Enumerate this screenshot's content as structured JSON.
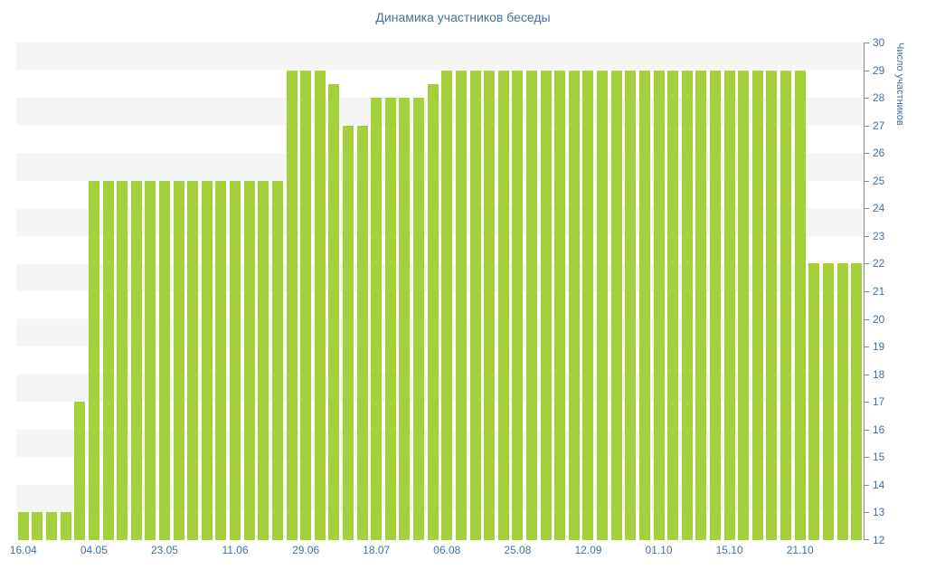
{
  "title": "Динамика участников беседы",
  "colors": {
    "background": "#ffffff",
    "stripe": "#f5f5f5",
    "bar": "#a4d139",
    "text": "#44719e",
    "axis": "#8a8a8a"
  },
  "chart_data": {
    "type": "bar",
    "title": "Динамика участников беседы",
    "xlabel": "",
    "ylabel": "Число участников",
    "ylim": [
      12,
      30
    ],
    "y_tick_step": 1,
    "y_axis_side": "right",
    "grid": "horizontal-stripes",
    "legend": "none",
    "bar_color": "#a4d139",
    "x_tick_every": 5,
    "categories_shown": [
      "16.04",
      "04.05",
      "23.05",
      "11.06",
      "29.06",
      "18.07",
      "06.08",
      "25.08",
      "12.09",
      "01.10",
      "15.10",
      "21.10"
    ],
    "values": [
      13,
      13,
      13,
      13,
      17,
      25,
      25,
      25,
      25,
      25,
      25,
      25,
      25,
      25,
      25,
      25,
      25,
      25,
      25,
      29,
      29,
      29,
      28.5,
      27,
      27,
      28,
      28,
      28,
      28,
      28.5,
      29,
      29,
      29,
      29,
      29,
      29,
      29,
      29,
      29,
      29,
      29,
      29,
      29,
      29,
      29,
      29,
      29,
      29,
      29,
      29,
      29,
      29,
      29,
      29,
      29,
      29,
      22,
      22,
      22,
      22
    ]
  }
}
